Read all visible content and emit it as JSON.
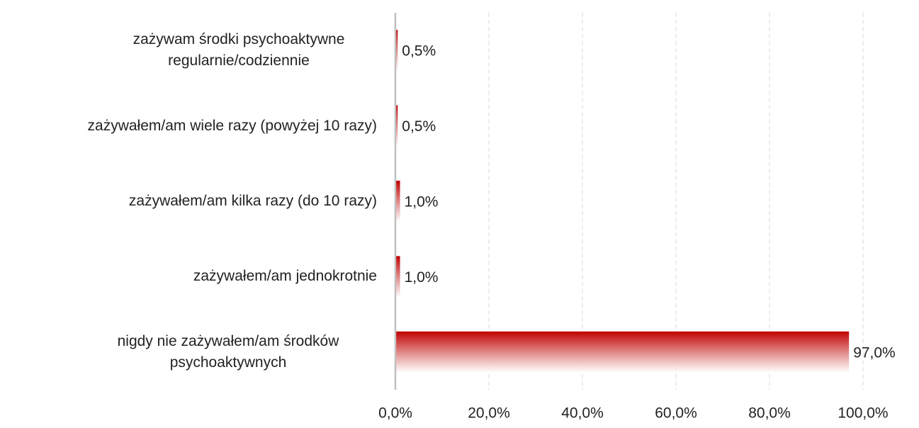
{
  "chart_data": {
    "type": "bar",
    "orientation": "horizontal",
    "categories": [
      "zażywam środki psychoaktywne regularnie/codziennie",
      "zażywałem/am wiele razy (powyżej 10 razy)",
      "zażywałem/am kilka razy (do 10 razy)",
      "zażywałem/am jednokrotnie",
      "nigdy nie zażywałem/am środków psychoaktywnych"
    ],
    "values": [
      0.5,
      0.5,
      1.0,
      1.0,
      97.0
    ],
    "value_labels": [
      "0,5%",
      "0,5%",
      "1,0%",
      "1,0%",
      "97,0%"
    ],
    "color": "#c00000",
    "xlim": [
      0,
      100
    ],
    "xticks": [
      {
        "value": 0,
        "label": "0,0%"
      },
      {
        "value": 20,
        "label": "20,0%"
      },
      {
        "value": 40,
        "label": "40,0%"
      },
      {
        "value": 60,
        "label": "60,0%"
      },
      {
        "value": 80,
        "label": "80,0%"
      },
      {
        "value": 100,
        "label": "100,0%"
      }
    ],
    "grid": true
  }
}
